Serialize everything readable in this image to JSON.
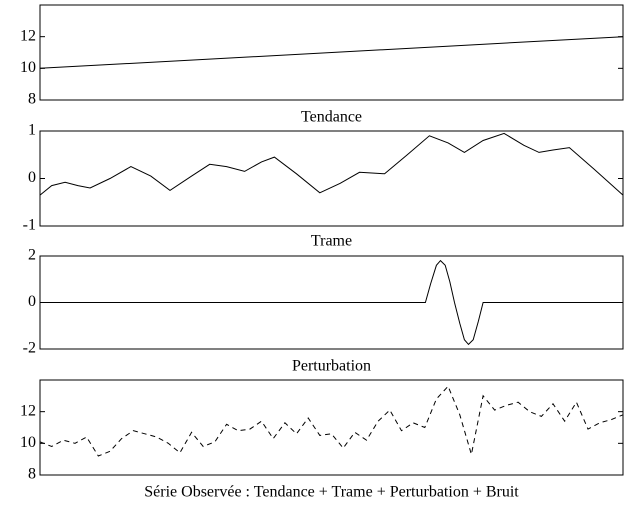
{
  "chart_data": [
    {
      "type": "line",
      "xlabel": "Tendance",
      "x": [
        0,
        100
      ],
      "values": [
        10,
        12
      ],
      "color": "#000000",
      "line_style": "solid",
      "xlim": [
        0,
        100
      ],
      "ylim": [
        8,
        14
      ],
      "yticks": [
        8,
        10,
        12
      ]
    },
    {
      "type": "line",
      "xlabel": "Trame",
      "x": [
        0,
        2,
        4.3,
        6.5,
        8.6,
        12,
        15.6,
        19,
        22.3,
        26,
        29.1,
        32,
        35.1,
        38,
        40.2,
        44,
        48,
        51.5,
        54.8,
        59.1,
        63,
        66.8,
        70,
        72.8,
        76,
        79.6,
        83,
        85.6,
        88,
        90.8,
        95,
        100
      ],
      "values": [
        -0.35,
        -0.15,
        -0.08,
        -0.15,
        -0.2,
        0.0,
        0.25,
        0.05,
        -0.25,
        0.05,
        0.3,
        0.25,
        0.15,
        0.35,
        0.45,
        0.1,
        -0.3,
        -0.1,
        0.13,
        0.1,
        0.5,
        0.9,
        0.75,
        0.55,
        0.8,
        0.95,
        0.7,
        0.55,
        0.6,
        0.65,
        0.2,
        -0.35
      ],
      "color": "#000000",
      "line_style": "solid",
      "xlim": [
        0,
        100
      ],
      "ylim": [
        -1,
        1
      ],
      "yticks": [
        -1,
        0,
        1
      ]
    },
    {
      "type": "line",
      "xlabel": "Perturbation",
      "x": [
        0,
        66.1,
        67,
        68,
        68.7,
        69.5,
        70.3,
        71.1,
        72,
        72.8,
        73.5,
        74.3,
        75.2,
        76,
        100
      ],
      "values": [
        0,
        0,
        0.8,
        1.6,
        1.8,
        1.6,
        0.9,
        0,
        -0.9,
        -1.6,
        -1.8,
        -1.6,
        -0.8,
        0,
        0
      ],
      "color": "#000000",
      "line_style": "solid",
      "xlim": [
        0,
        100
      ],
      "ylim": [
        -2,
        2
      ],
      "yticks": [
        -2,
        0,
        2
      ]
    },
    {
      "type": "line",
      "xlabel": "Série Observée : Tendance + Trame + Perturbation + Bruit",
      "x": [
        0,
        2,
        4,
        6,
        8,
        10,
        12,
        14,
        16,
        18,
        20,
        22,
        24,
        26,
        28,
        30,
        32,
        34,
        36,
        38,
        40,
        42,
        44,
        46,
        48,
        50,
        52,
        54,
        56,
        58,
        60,
        62,
        64,
        66,
        68,
        70,
        72,
        74,
        76,
        78,
        80,
        82,
        84,
        86,
        88,
        90,
        92,
        94,
        96,
        98,
        100
      ],
      "values": [
        10.1,
        9.8,
        10.2,
        10.0,
        10.4,
        9.2,
        9.5,
        10.3,
        10.8,
        10.6,
        10.4,
        10.0,
        9.4,
        10.7,
        9.8,
        10.1,
        11.2,
        10.8,
        10.9,
        11.4,
        10.3,
        11.3,
        10.6,
        11.6,
        10.5,
        10.6,
        9.7,
        10.7,
        10.2,
        11.4,
        12.1,
        10.8,
        11.3,
        11.0,
        12.8,
        13.6,
        11.8,
        9.3,
        13.0,
        12.1,
        12.4,
        12.6,
        12.0,
        11.7,
        12.5,
        11.4,
        12.6,
        10.9,
        11.3,
        11.5,
        11.8
      ],
      "color": "#000000",
      "line_style": "dashed",
      "xlim": [
        0,
        100
      ],
      "ylim": [
        8,
        14
      ],
      "yticks": [
        8,
        10,
        12
      ]
    }
  ]
}
